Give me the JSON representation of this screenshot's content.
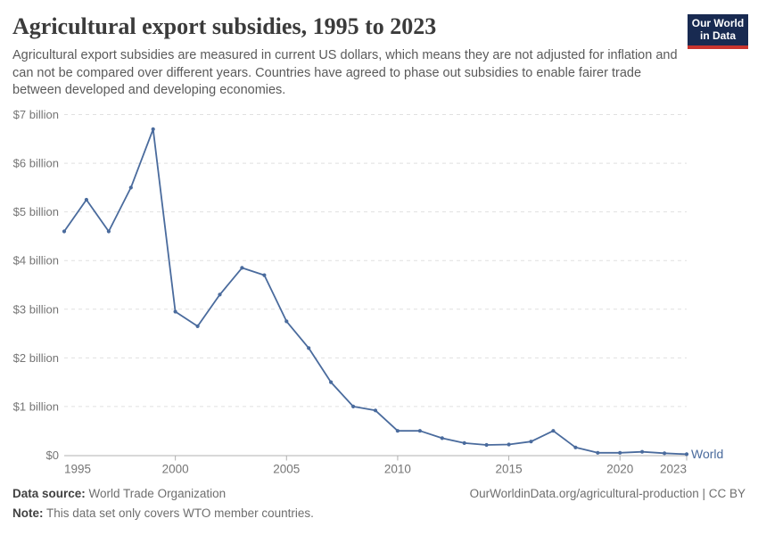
{
  "header": {
    "title": "Agricultural export subsidies, 1995 to 2023",
    "subtitle": "Agricultural export subsidies are measured in current US dollars, which means they are not adjusted for inflation and can not be compared over different years. Countries have agreed to phase out subsidies to enable fairer trade between developed and developing economies.",
    "logo": {
      "line1": "Our World",
      "line2": "in Data"
    }
  },
  "chart_data": {
    "type": "line",
    "title": "Agricultural export subsidies, 1995 to 2023",
    "xlabel": "",
    "ylabel": "",
    "xlim": [
      1995,
      2023
    ],
    "ylim": [
      0,
      7
    ],
    "grid": "horizontal-dashed",
    "legend_position": "line-end-label",
    "x": [
      1995,
      1996,
      1997,
      1998,
      1999,
      2000,
      2001,
      2002,
      2003,
      2004,
      2005,
      2006,
      2007,
      2008,
      2009,
      2010,
      2011,
      2012,
      2013,
      2014,
      2015,
      2016,
      2017,
      2018,
      2019,
      2020,
      2021,
      2022,
      2023
    ],
    "series": [
      {
        "name": "World",
        "unit": "billion US dollars",
        "values": [
          4.6,
          5.25,
          4.6,
          5.5,
          6.7,
          2.95,
          2.65,
          3.3,
          3.85,
          3.7,
          2.75,
          2.2,
          1.5,
          1.0,
          0.92,
          0.5,
          0.5,
          0.35,
          0.25,
          0.21,
          0.22,
          0.28,
          0.5,
          0.16,
          0.05,
          0.05,
          0.07,
          0.04,
          0.02
        ]
      }
    ],
    "yticks": [
      0,
      1,
      2,
      3,
      4,
      5,
      6,
      7
    ],
    "ytick_labels": [
      "$0",
      "$1 billion",
      "$2 billion",
      "$3 billion",
      "$4 billion",
      "$5 billion",
      "$6 billion",
      "$7 billion"
    ],
    "xticks": [
      1995,
      2000,
      2005,
      2010,
      2015,
      2020,
      2023
    ],
    "xtick_labels": [
      "1995",
      "2000",
      "2005",
      "2010",
      "2015",
      "2020",
      "2023"
    ]
  },
  "footer": {
    "datasource_label": "Data source:",
    "datasource_value": " World Trade Organization",
    "url": "OurWorldinData.org/agricultural-production | CC BY",
    "note_label": "Note:",
    "note_value": " This data set only covers WTO member countries."
  },
  "colors": {
    "line": "#4a6b9d",
    "grid": "#e0e0e0",
    "axis": "#b0b0b0",
    "tick_text": "#757575",
    "series_label": "#4a6b9d",
    "logo_bg": "#182a51",
    "logo_red": "#c9342e"
  }
}
